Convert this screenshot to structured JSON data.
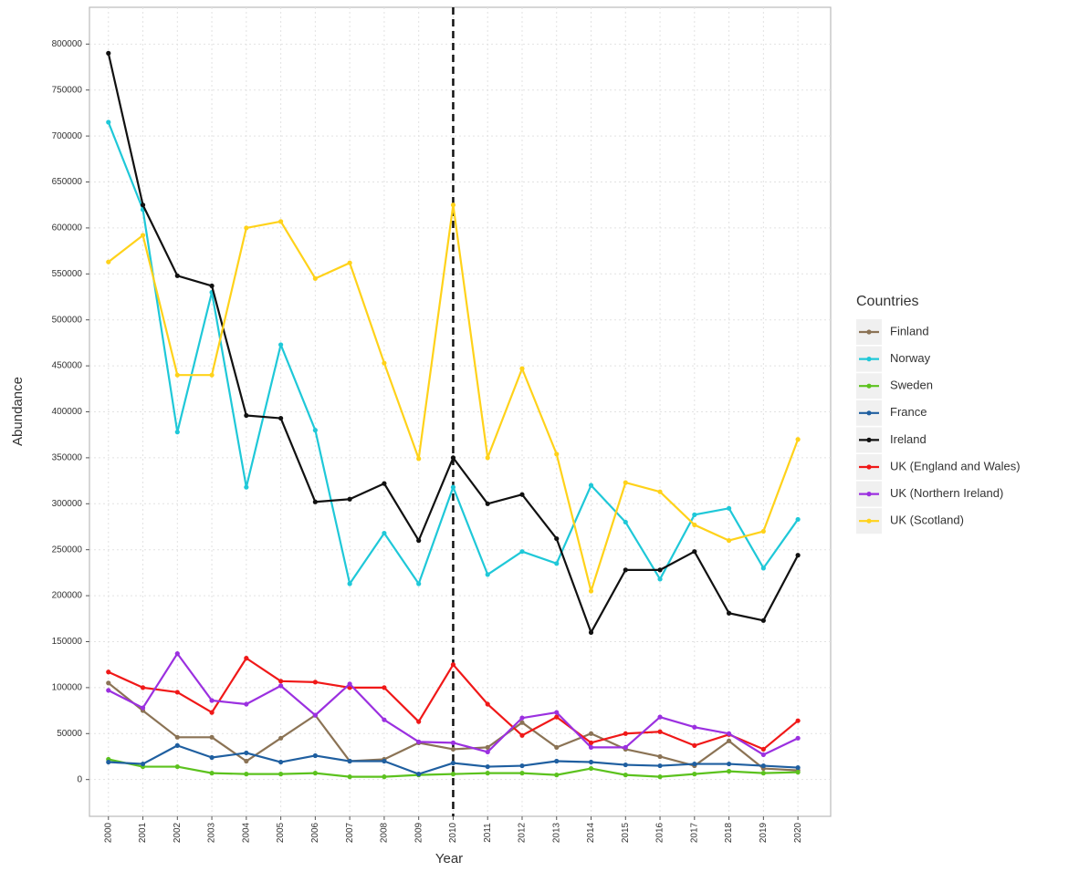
{
  "chart_data": {
    "type": "line",
    "x_label": "Year",
    "y_label": "Abundance",
    "legend_title": "Countries",
    "legend_position": "right",
    "grid": true,
    "vline": 2010,
    "x": [
      2000,
      2001,
      2002,
      2003,
      2004,
      2005,
      2006,
      2007,
      2008,
      2009,
      2010,
      2011,
      2012,
      2013,
      2014,
      2015,
      2016,
      2017,
      2018,
      2019,
      2020
    ],
    "xticks": [
      2000,
      2001,
      2002,
      2003,
      2004,
      2005,
      2006,
      2007,
      2008,
      2009,
      2010,
      2011,
      2012,
      2013,
      2014,
      2015,
      2016,
      2017,
      2018,
      2019,
      2020
    ],
    "xlim": [
      1999.45,
      2020.95
    ],
    "ylim": [
      -40000,
      840000
    ],
    "yticks": [
      0,
      50000,
      100000,
      150000,
      200000,
      250000,
      300000,
      350000,
      400000,
      450000,
      500000,
      550000,
      600000,
      650000,
      700000,
      750000,
      800000
    ],
    "series": [
      {
        "name": "Finland",
        "color": "#8b7355",
        "values": [
          105000,
          75000,
          46000,
          46000,
          20000,
          45000,
          70000,
          20000,
          22000,
          40000,
          33000,
          35000,
          62000,
          35000,
          50000,
          33000,
          25000,
          15000,
          42000,
          12000,
          10000
        ]
      },
      {
        "name": "Norway",
        "color": "#1fc8d8",
        "values": [
          715000,
          620000,
          378000,
          530000,
          318000,
          473000,
          380000,
          213000,
          268000,
          213000,
          318000,
          223000,
          248000,
          235000,
          320000,
          280000,
          218000,
          288000,
          295000,
          230000,
          283000
        ]
      },
      {
        "name": "Sweden",
        "color": "#5cc21e",
        "values": [
          22000,
          14000,
          14000,
          7000,
          6000,
          6000,
          7000,
          3000,
          3000,
          5000,
          6000,
          7000,
          7000,
          5000,
          12000,
          5000,
          3000,
          6000,
          9000,
          7000,
          8000
        ]
      },
      {
        "name": "France",
        "color": "#1f5fa0",
        "values": [
          19000,
          17000,
          37000,
          24000,
          29000,
          19000,
          26000,
          20000,
          20000,
          6000,
          18000,
          14000,
          15000,
          20000,
          19000,
          16000,
          15000,
          17000,
          17000,
          15000,
          13000
        ]
      },
      {
        "name": "Ireland",
        "color": "#111111",
        "values": [
          790000,
          625000,
          548000,
          537000,
          396000,
          393000,
          302000,
          305000,
          322000,
          260000,
          350000,
          300000,
          310000,
          262000,
          160000,
          228000,
          228000,
          248000,
          181000,
          173000,
          244000
        ]
      },
      {
        "name": "UK (England and Wales)",
        "color": "#f01818",
        "values": [
          117000,
          100000,
          95000,
          73000,
          132000,
          107000,
          106000,
          100000,
          100000,
          63000,
          125000,
          82000,
          48000,
          68000,
          40000,
          50000,
          52000,
          37000,
          49000,
          33000,
          64000
        ]
      },
      {
        "name": "UK (Northern Ireland)",
        "color": "#9b30e0",
        "values": [
          97000,
          78000,
          137000,
          86000,
          82000,
          102000,
          70000,
          104000,
          65000,
          41000,
          40000,
          30000,
          67000,
          73000,
          35000,
          35000,
          68000,
          57000,
          50000,
          27000,
          45000
        ]
      },
      {
        "name": "UK (Scotland)",
        "color": "#ffd21a",
        "values": [
          563000,
          592000,
          440000,
          440000,
          600000,
          607000,
          545000,
          562000,
          453000,
          349000,
          625000,
          350000,
          447000,
          354000,
          205000,
          323000,
          313000,
          277000,
          260000,
          270000,
          370000
        ]
      }
    ]
  }
}
